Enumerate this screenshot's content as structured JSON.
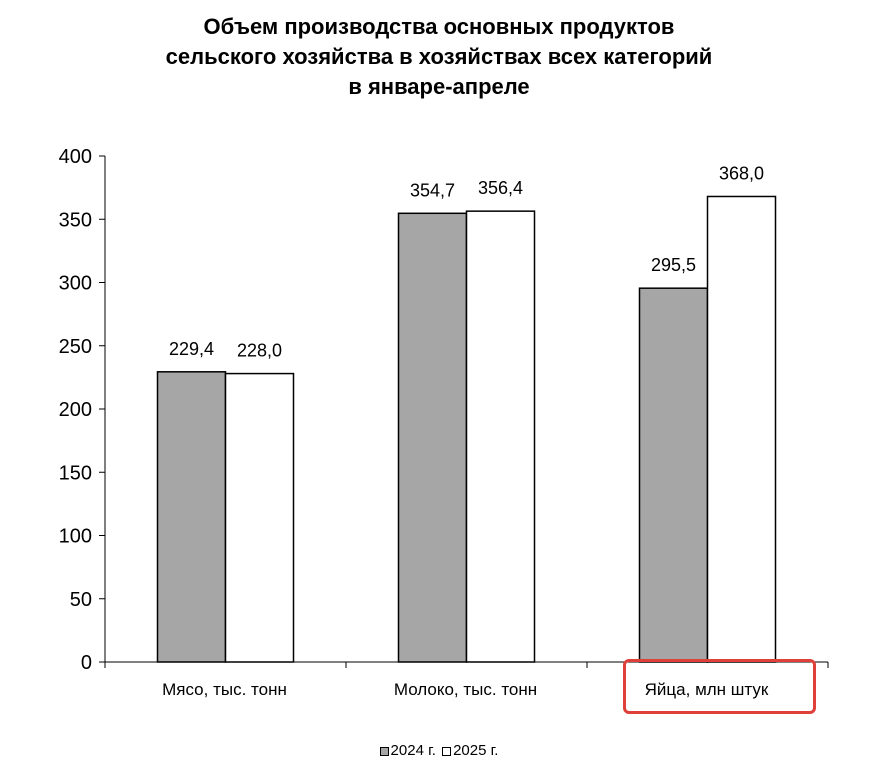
{
  "chart_data": {
    "type": "bar",
    "title_lines": [
      "Объем производства основных продуктов",
      "сельского хозяйства в хозяйствах всех категорий",
      "в январе-апреле"
    ],
    "categories": [
      "Мясо, тыс. тонн",
      "Молоко, тыс. тонн",
      "Яйца, млн штук"
    ],
    "series": [
      {
        "name": "2024 г.",
        "values": [
          229.4,
          354.7,
          295.5
        ],
        "labels": [
          "229,4",
          "354,7",
          "295,5"
        ],
        "color": "#a6a6a6"
      },
      {
        "name": "2025 г.",
        "values": [
          228.0,
          356.4,
          368.0
        ],
        "labels": [
          "228,0",
          "356,4",
          "368,0"
        ],
        "color": "#ffffff"
      }
    ],
    "ylim": [
      0,
      400
    ],
    "yticks": [
      0,
      50,
      100,
      150,
      200,
      250,
      300,
      350,
      400
    ],
    "grid": false,
    "legend_position": "bottom",
    "highlighted_category": "Яйца, млн штук",
    "highlight_color": "#e0403a"
  }
}
